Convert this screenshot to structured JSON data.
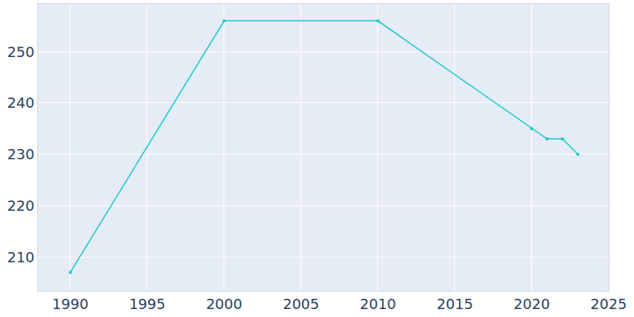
{
  "chart_data": {
    "type": "line",
    "x": [
      1990,
      2000,
      2010,
      2020,
      2021,
      2022,
      2023
    ],
    "values": [
      207,
      256,
      256,
      235,
      233,
      233,
      230
    ],
    "color": "#1cc8cc",
    "marker": "circle",
    "xlim": [
      1987.9,
      2025
    ],
    "xticks": [
      1990,
      1995,
      2000,
      2005,
      2010,
      2015,
      2020,
      2025
    ],
    "ylim": [
      203.4,
      259.3
    ],
    "yticks": [
      210,
      220,
      230,
      240,
      250
    ],
    "grid": true
  }
}
